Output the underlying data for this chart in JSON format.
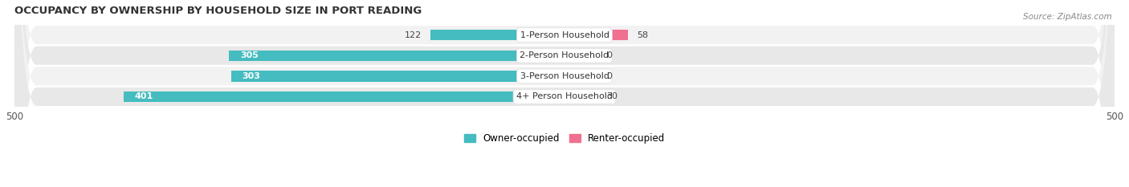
{
  "title": "OCCUPANCY BY OWNERSHIP BY HOUSEHOLD SIZE IN PORT READING",
  "source": "Source: ZipAtlas.com",
  "categories": [
    "1-Person Household",
    "2-Person Household",
    "3-Person Household",
    "4+ Person Household"
  ],
  "owner_values": [
    122,
    305,
    303,
    401
  ],
  "renter_values": [
    58,
    0,
    0,
    30
  ],
  "owner_color": "#45BCBF",
  "renter_color": "#F07090",
  "renter_color_light": "#F5A0B8",
  "row_bg_colors": [
    "#F2F2F2",
    "#E8E8E8",
    "#F2F2F2",
    "#E8E8E8"
  ],
  "axis_max": 500,
  "label_fontsize": 8.0,
  "title_fontsize": 9.5,
  "legend_owner": "Owner-occupied",
  "legend_renter": "Renter-occupied",
  "bar_height": 0.52,
  "owner_label_threshold": 200
}
